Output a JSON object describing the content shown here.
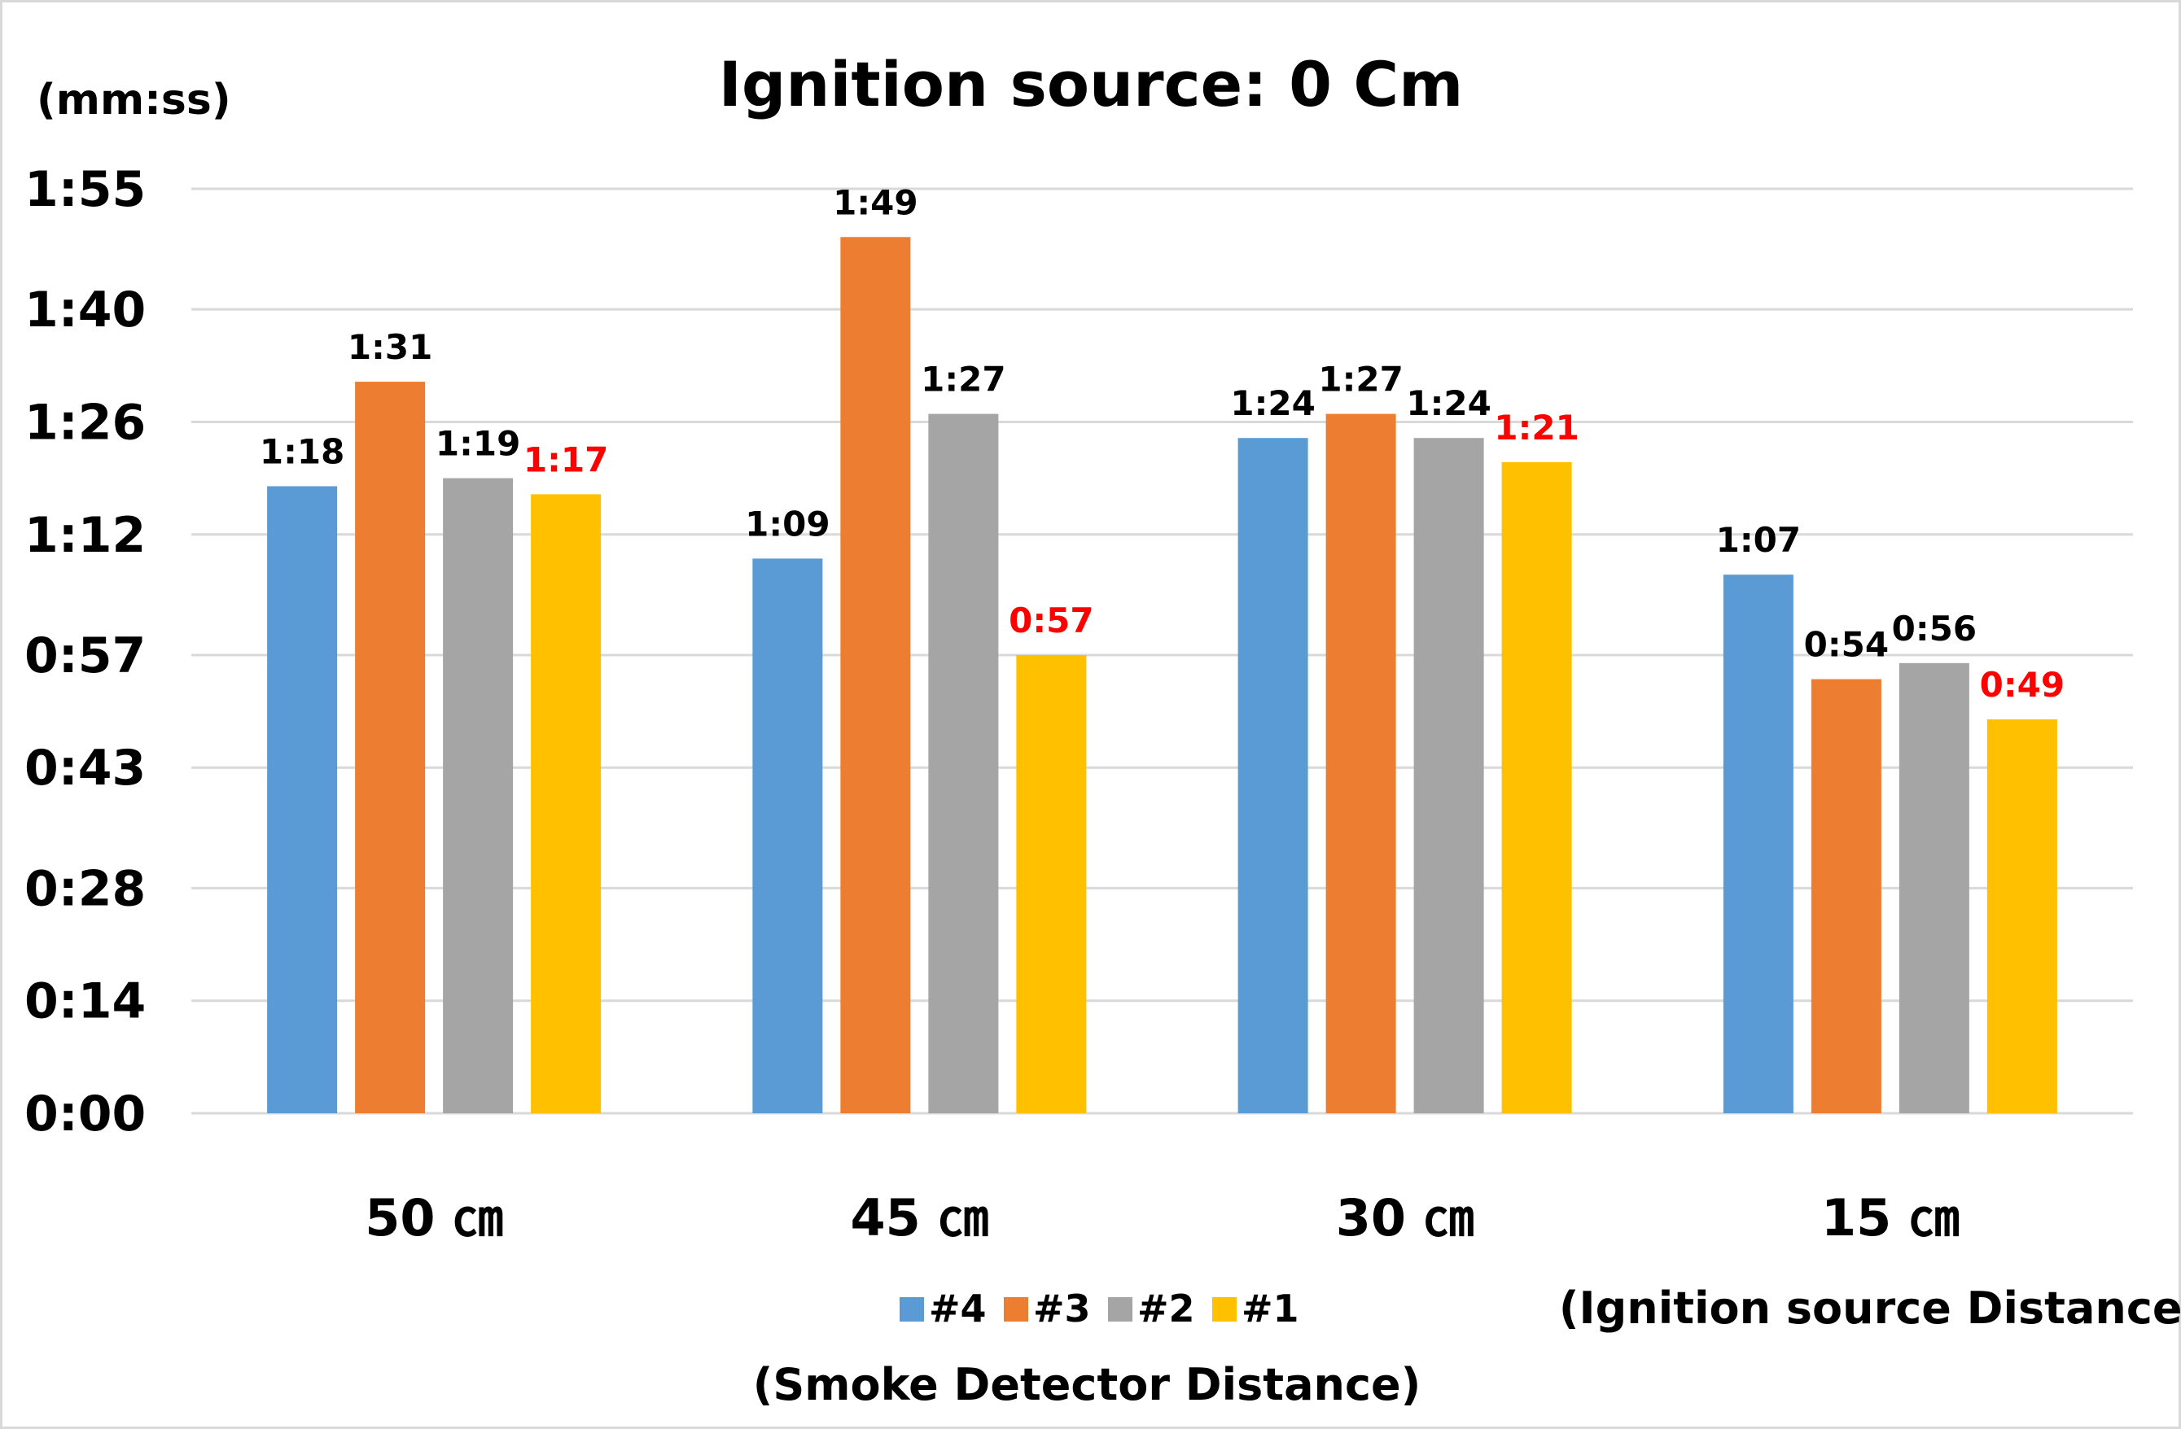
{
  "chart_data": {
    "type": "bar",
    "title": "Ignition source: 0 Cm",
    "ylabel": "(mm:ss)",
    "xlabel": "(Ignition source Distance)",
    "legend_title": "(Smoke Detector Distance)",
    "ylim": [
      0,
      115
    ],
    "yticks": [
      0,
      14,
      28,
      43,
      57,
      72,
      86,
      100,
      115
    ],
    "ytick_labels": [
      "0:00",
      "0:14",
      "0:28",
      "0:43",
      "0:57",
      "1:12",
      "1:26",
      "1:40",
      "1:55"
    ],
    "categories": [
      "50 ㎝",
      "45 ㎝",
      "30 ㎝",
      "15 ㎝"
    ],
    "series": [
      {
        "name": "#4",
        "color": "#5b9bd5",
        "values": [
          78,
          69,
          84,
          67
        ],
        "labels": [
          "1:18",
          "1:09",
          "1:24",
          "1:07"
        ],
        "label_color": "#000000"
      },
      {
        "name": "#3",
        "color": "#ed7d31",
        "values": [
          91,
          109,
          87,
          54
        ],
        "labels": [
          "1:31",
          "1:49",
          "1:27",
          "0:54"
        ],
        "label_color": "#000000"
      },
      {
        "name": "#2",
        "color": "#a5a5a5",
        "values": [
          79,
          87,
          84,
          56
        ],
        "labels": [
          "1:19",
          "1:27",
          "1:24",
          "0:56"
        ],
        "label_color": "#000000"
      },
      {
        "name": "#1",
        "color": "#ffc000",
        "values": [
          77,
          57,
          81,
          49
        ],
        "labels": [
          "1:17",
          "0:57",
          "1:21",
          "0:49"
        ],
        "label_color": "#ff0000"
      }
    ],
    "grid": true,
    "legend_position": "bottom"
  }
}
